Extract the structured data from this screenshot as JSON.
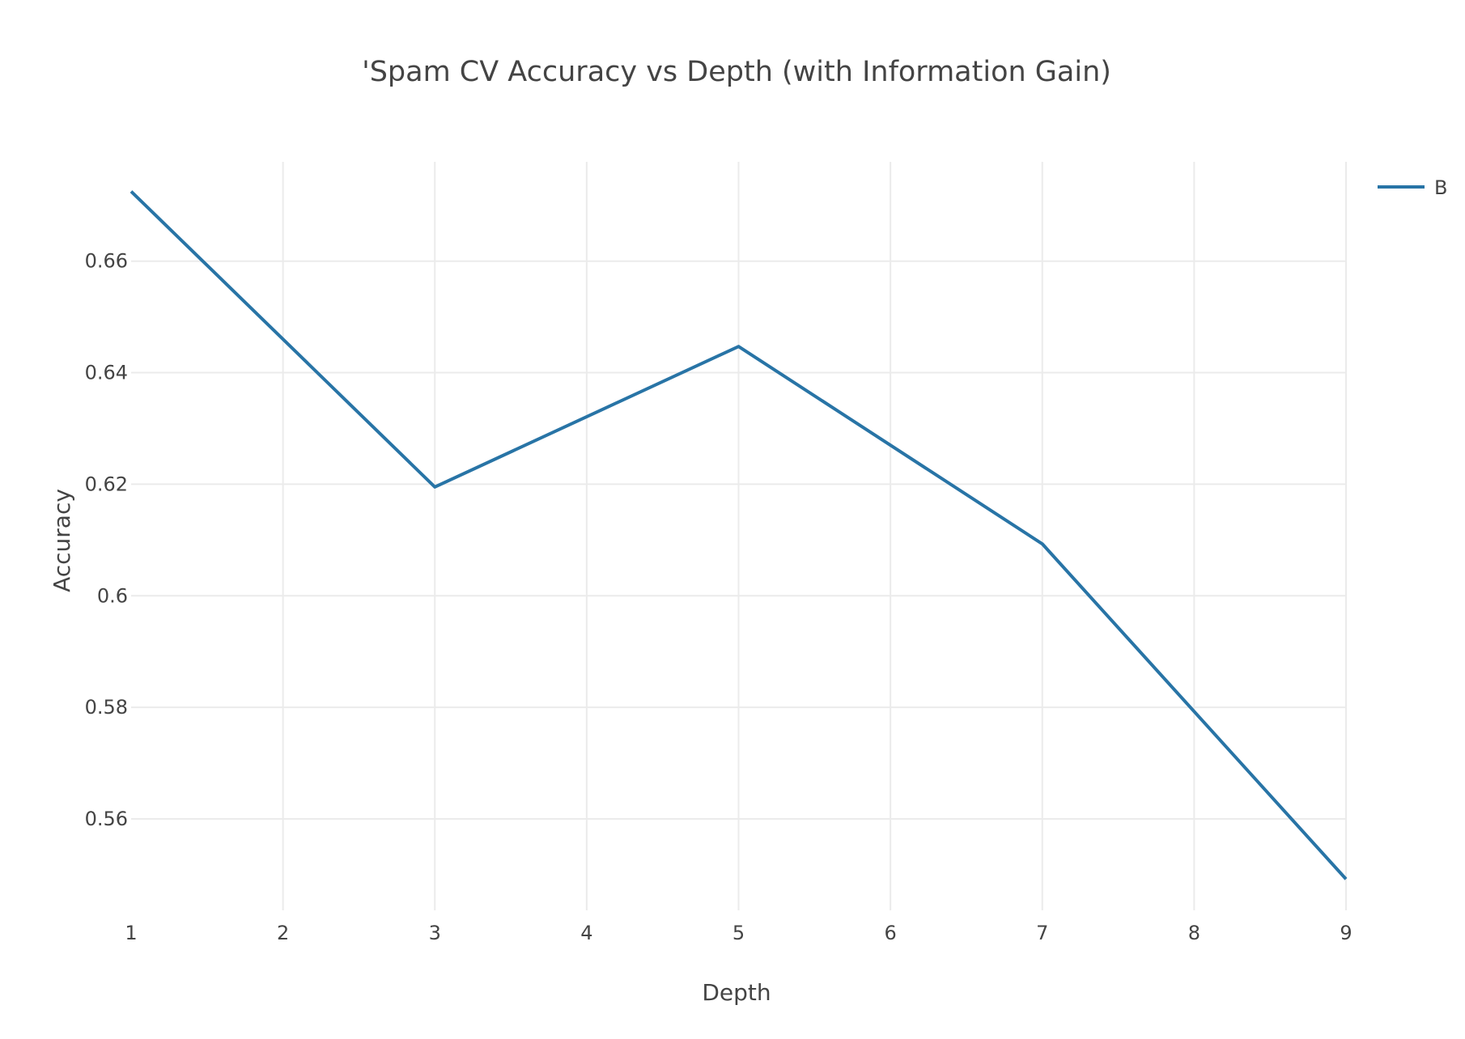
{
  "chart_data": {
    "type": "line",
    "title": "'Spam CV Accuracy vs Depth (with Information Gain)",
    "xlabel": "Depth",
    "ylabel": "Accuracy",
    "xlim": [
      1,
      9
    ],
    "ylim": [
      0.5436,
      0.6778
    ],
    "xticks": [
      1,
      2,
      3,
      4,
      5,
      6,
      7,
      8,
      9
    ],
    "yticks": [
      0.56,
      0.58,
      0.6,
      0.62,
      0.64,
      0.66
    ],
    "ytick_labels": [
      "0.56",
      "0.58",
      "0.6",
      "0.62",
      "0.64",
      "0.66"
    ],
    "grid": true,
    "legend_position": "top-right",
    "series": [
      {
        "name": "B",
        "color": "#2874a6",
        "x": [
          1,
          3,
          5,
          7,
          9
        ],
        "y": [
          0.6725,
          0.6195,
          0.6447,
          0.6093,
          0.5492
        ]
      }
    ]
  }
}
